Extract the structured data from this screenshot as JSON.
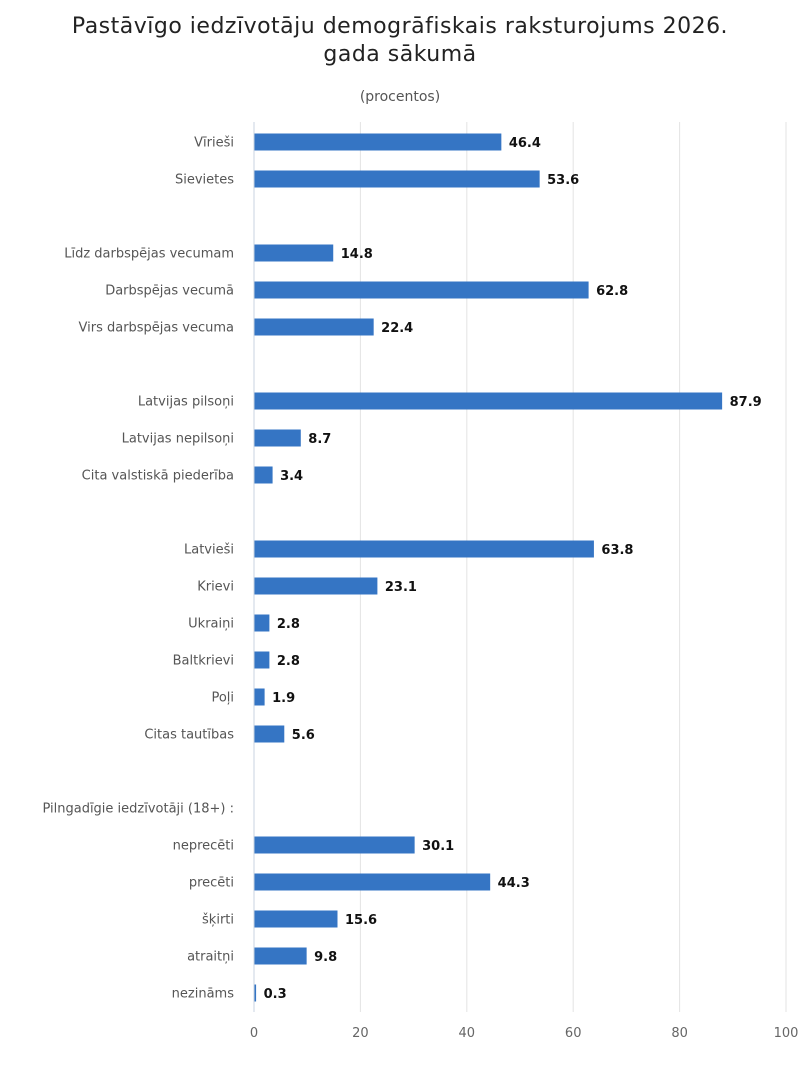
{
  "colors": {
    "bar": "#3575c4",
    "grid": "#e3e3e3",
    "axis": "#c8d3e0"
  },
  "chart_data": {
    "type": "bar",
    "orientation": "horizontal",
    "title_lines": [
      "Pastāvīgo iedzīvotāju demogrāfiskais raksturojums 2026.",
      "gada sākumā"
    ],
    "subtitle": "(procentos)",
    "xlim": [
      0,
      100
    ],
    "x_ticks": [
      0,
      20,
      40,
      60,
      80,
      100
    ],
    "grid": true,
    "rows": [
      {
        "label": "Vīrieši",
        "value": 46.4,
        "value_label": "46.4"
      },
      {
        "label": "Sievietes",
        "value": 53.6,
        "value_label": "53.6"
      },
      {
        "label": "",
        "value": null,
        "value_label": ""
      },
      {
        "label": "Līdz darbspējas vecumam",
        "value": 14.8,
        "value_label": "14.8"
      },
      {
        "label": "Darbspējas vecumā",
        "value": 62.8,
        "value_label": "62.8"
      },
      {
        "label": "Virs darbspējas vecuma",
        "value": 22.4,
        "value_label": "22.4"
      },
      {
        "label": "",
        "value": null,
        "value_label": ""
      },
      {
        "label": "Latvijas pilsoņi",
        "value": 87.9,
        "value_label": "87.9"
      },
      {
        "label": "Latvijas nepilsoņi",
        "value": 8.7,
        "value_label": "8.7"
      },
      {
        "label": "Cita valstiskā piederība",
        "value": 3.4,
        "value_label": "3.4"
      },
      {
        "label": "",
        "value": null,
        "value_label": ""
      },
      {
        "label": "Latvieši",
        "value": 63.8,
        "value_label": "63.8"
      },
      {
        "label": "Krievi",
        "value": 23.1,
        "value_label": "23.1"
      },
      {
        "label": "Ukraiņi",
        "value": 2.8,
        "value_label": "2.8"
      },
      {
        "label": "Baltkrievi",
        "value": 2.8,
        "value_label": "2.8"
      },
      {
        "label": "Poļi",
        "value": 1.9,
        "value_label": "1.9"
      },
      {
        "label": "Citas tautības",
        "value": 5.6,
        "value_label": "5.6"
      },
      {
        "label": "",
        "value": null,
        "value_label": ""
      },
      {
        "label": "Pilngadīgie iedzīvotāji (18+) :",
        "value": null,
        "value_label": ""
      },
      {
        "label": "neprecēti",
        "value": 30.1,
        "value_label": "30.1"
      },
      {
        "label": "precēti",
        "value": 44.3,
        "value_label": "44.3"
      },
      {
        "label": "šķirti",
        "value": 15.6,
        "value_label": "15.6"
      },
      {
        "label": "atraitņi",
        "value": 9.8,
        "value_label": "9.8"
      },
      {
        "label": "nezināms",
        "value": 0.3,
        "value_label": "0.3"
      }
    ]
  }
}
